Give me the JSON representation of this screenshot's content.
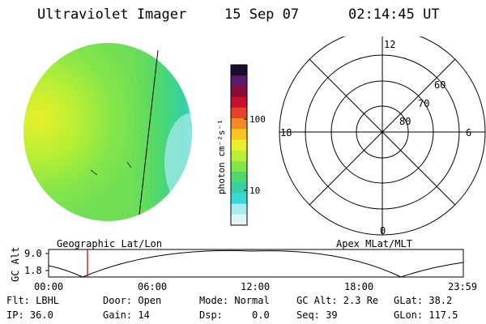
{
  "header": {
    "title": "Ultraviolet Imager",
    "date": "15 Sep 07",
    "time": "02:14:45 UT"
  },
  "image_panel": {
    "caption": "Geographic Lat/Lon"
  },
  "colorbar": {
    "unit_label": "photon cm⁻²s⁻¹",
    "ticks": [
      "100",
      "10"
    ],
    "colors": [
      "#1a0c2e",
      "#5a1a6a",
      "#8b0a3a",
      "#c8102e",
      "#e8402a",
      "#f08a24",
      "#f7c51e",
      "#e9ef2a",
      "#b9ef35",
      "#84e54a",
      "#4fd86b",
      "#33d1a4",
      "#3bd8d8",
      "#a8eded",
      "#dff5f5"
    ]
  },
  "polar_plot": {
    "caption": "Apex MLat/MLT",
    "mlt_labels": [
      "12",
      "18",
      "6",
      "0"
    ],
    "lat_labels": [
      "60",
      "70",
      "80"
    ]
  },
  "altitude_plot": {
    "ylabel": "GC Alt",
    "yticks": [
      "9.0",
      "1.8"
    ],
    "xticks": [
      "00:00",
      "06:00",
      "12:00",
      "18:00",
      "23:59"
    ],
    "marker_time_hours": 2.25,
    "marker_color": "#d40000"
  },
  "status": {
    "flt": "Flt: LBHL",
    "ip": "IP: 36.0",
    "door": "Door: Open",
    "gain": "Gain: 14",
    "mode": "Mode: Normal",
    "dsp": "Dsp:     0.0",
    "gc_alt": "GC Alt: 2.3 Re",
    "seq": "Seq: 39",
    "glat": "GLat: 38.2",
    "glon": "GLon: 117.5"
  }
}
